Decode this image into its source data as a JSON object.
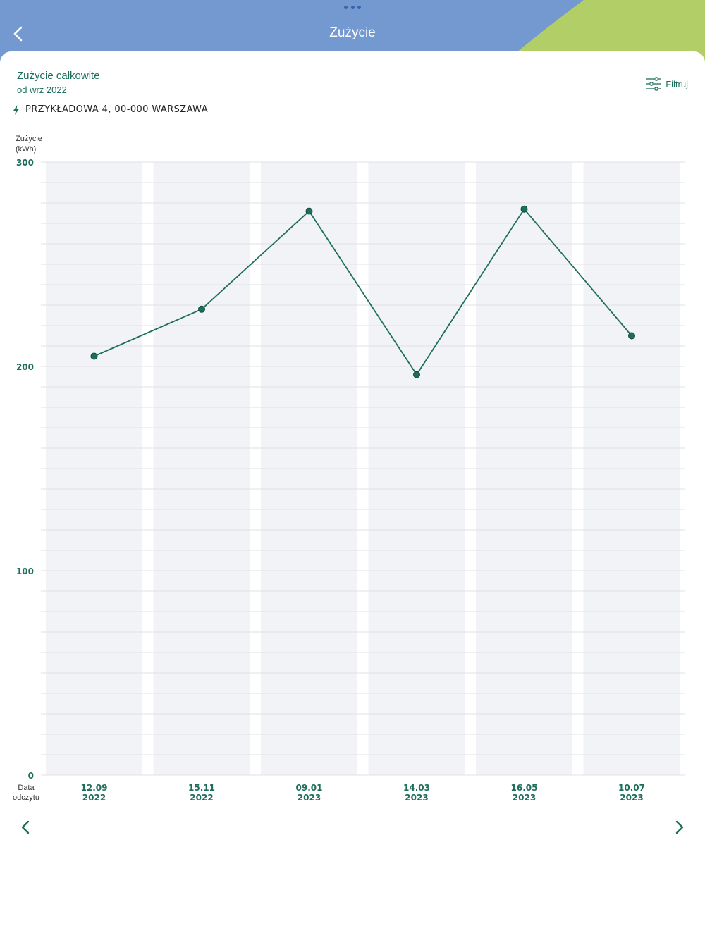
{
  "header": {
    "title": "Zużycie",
    "back_icon": "chevron-left-icon",
    "colors": {
      "blue": "#7499d0",
      "green": "#b1cf66"
    }
  },
  "section": {
    "title": "Zużycie całkowite",
    "subtitle": "od wrz 2022"
  },
  "filter": {
    "label": "Filtruj",
    "icon": "sliders-icon"
  },
  "address": {
    "icon": "bolt-icon",
    "text": "PRZYKŁADOWA 4, 00-000 WARSZAWA"
  },
  "navigation": {
    "prev_icon": "chevron-left-icon",
    "next_icon": "chevron-right-icon"
  },
  "colors": {
    "accent": "#1d6e5a",
    "column_bg": "#f2f3f7",
    "grid": "#e1e2e6"
  },
  "chart_data": {
    "type": "line",
    "ylabel_lines": [
      "Zużycie",
      "(kWh)"
    ],
    "xlabel_lines": [
      "Data",
      "odczytu"
    ],
    "ylim": [
      0,
      300
    ],
    "yticks": [
      0,
      100,
      200,
      300
    ],
    "categories": [
      [
        "12.09",
        "2022"
      ],
      [
        "15.11",
        "2022"
      ],
      [
        "09.01",
        "2023"
      ],
      [
        "14.03",
        "2023"
      ],
      [
        "16.05",
        "2023"
      ],
      [
        "10.07",
        "2023"
      ]
    ],
    "values": [
      205,
      228,
      276,
      196,
      277,
      215
    ],
    "grid": true
  }
}
